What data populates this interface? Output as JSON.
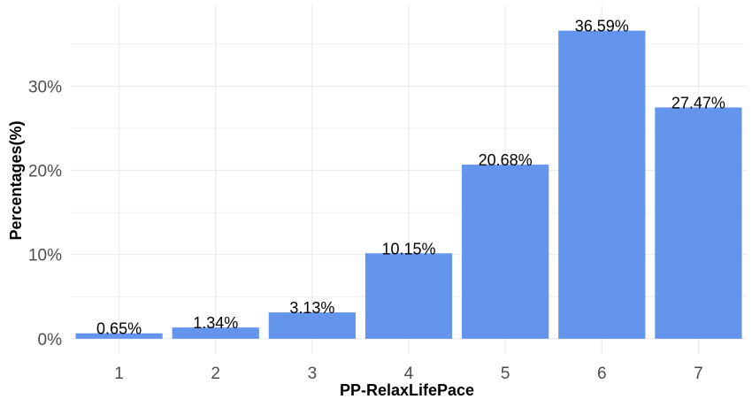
{
  "chart_data": {
    "type": "bar",
    "title": "",
    "xlabel": "PP-RelaxLifePace",
    "ylabel": "Percentages(%)",
    "categories": [
      "1",
      "2",
      "3",
      "4",
      "5",
      "6",
      "7"
    ],
    "values": [
      0.65,
      1.34,
      3.13,
      10.15,
      20.68,
      36.59,
      27.47
    ],
    "value_labels": [
      "0.65%",
      "1.34%",
      "3.13%",
      "10.15%",
      "20.68%",
      "36.59%",
      "27.47%"
    ],
    "y_ticks": [
      0,
      10,
      20,
      30
    ],
    "y_tick_labels": [
      "0%",
      "10%",
      "20%",
      "30%"
    ],
    "ylim": [
      -1.8,
      39.6
    ],
    "grid": true,
    "legend": "none",
    "bar_color": "#6495ED",
    "grid_color": "#ebebeb"
  }
}
